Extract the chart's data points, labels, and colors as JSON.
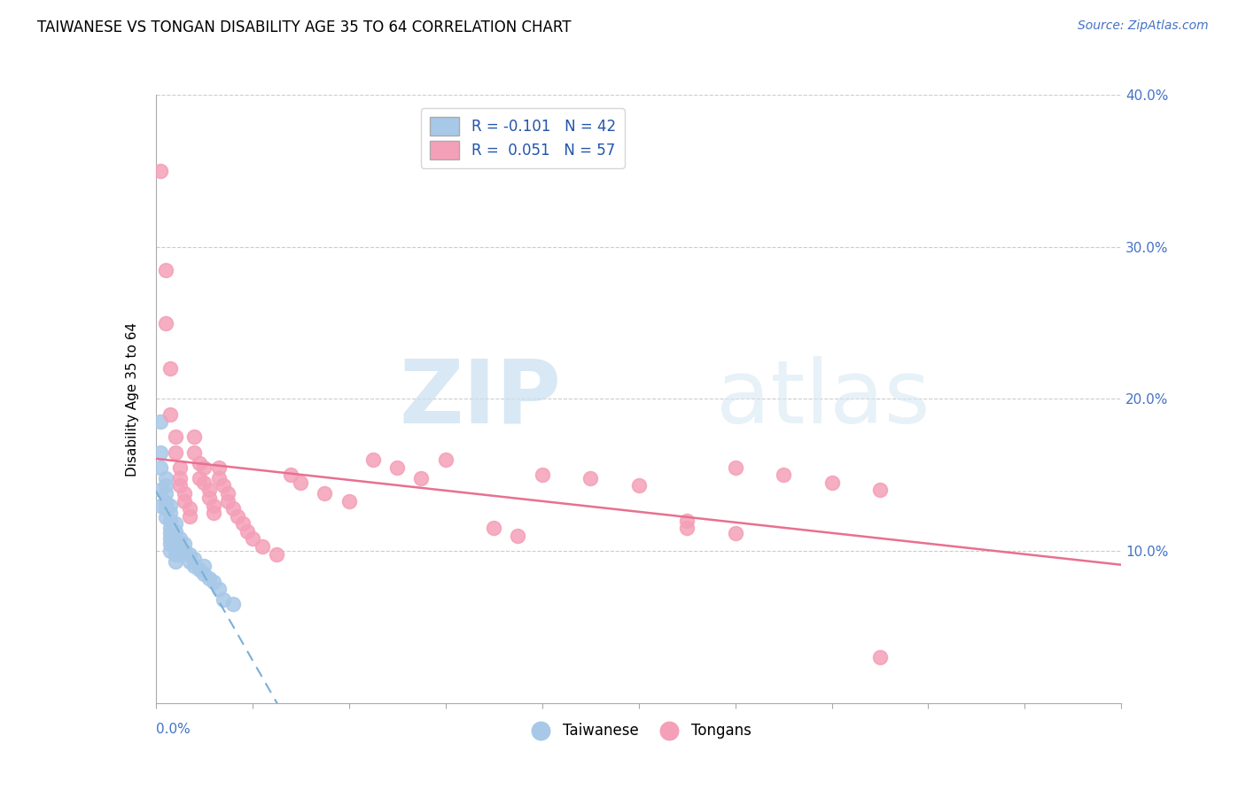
{
  "title": "TAIWANESE VS TONGAN DISABILITY AGE 35 TO 64 CORRELATION CHART",
  "source": "Source: ZipAtlas.com",
  "ylabel": "Disability Age 35 to 64",
  "xlim": [
    0.0,
    0.2
  ],
  "ylim": [
    0.0,
    0.4
  ],
  "yticks": [
    0.0,
    0.1,
    0.2,
    0.3,
    0.4
  ],
  "xticks": [
    0.0,
    0.02,
    0.04,
    0.06,
    0.08,
    0.1,
    0.12,
    0.14,
    0.16,
    0.18,
    0.2
  ],
  "taiwanese_color": "#a8c8e8",
  "tongan_color": "#f4a0b8",
  "taiwanese_line_color": "#7ab0d8",
  "tongan_line_color": "#e87090",
  "legend_label_1": "R = -0.101   N = 42",
  "legend_label_2": "R =  0.051   N = 57",
  "watermark_zip": "ZIP",
  "watermark_atlas": "atlas",
  "taiwanese_x": [
    0.001,
    0.001,
    0.001,
    0.001,
    0.001,
    0.002,
    0.002,
    0.002,
    0.002,
    0.002,
    0.002,
    0.003,
    0.003,
    0.003,
    0.003,
    0.003,
    0.003,
    0.003,
    0.003,
    0.004,
    0.004,
    0.004,
    0.004,
    0.004,
    0.004,
    0.005,
    0.005,
    0.005,
    0.006,
    0.006,
    0.007,
    0.007,
    0.008,
    0.008,
    0.009,
    0.01,
    0.01,
    0.011,
    0.012,
    0.013,
    0.014,
    0.016
  ],
  "taiwanese_y": [
    0.185,
    0.165,
    0.155,
    0.14,
    0.13,
    0.148,
    0.143,
    0.138,
    0.132,
    0.128,
    0.122,
    0.13,
    0.125,
    0.12,
    0.115,
    0.112,
    0.108,
    0.105,
    0.1,
    0.118,
    0.113,
    0.108,
    0.103,
    0.098,
    0.093,
    0.108,
    0.103,
    0.098,
    0.105,
    0.1,
    0.098,
    0.093,
    0.095,
    0.09,
    0.088,
    0.09,
    0.085,
    0.082,
    0.08,
    0.075,
    0.068,
    0.065
  ],
  "tongan_x": [
    0.001,
    0.002,
    0.002,
    0.003,
    0.003,
    0.004,
    0.004,
    0.005,
    0.005,
    0.005,
    0.006,
    0.006,
    0.007,
    0.007,
    0.008,
    0.008,
    0.009,
    0.009,
    0.01,
    0.01,
    0.011,
    0.011,
    0.012,
    0.012,
    0.013,
    0.013,
    0.014,
    0.015,
    0.015,
    0.016,
    0.017,
    0.018,
    0.019,
    0.02,
    0.022,
    0.025,
    0.028,
    0.03,
    0.035,
    0.04,
    0.045,
    0.05,
    0.055,
    0.06,
    0.07,
    0.075,
    0.08,
    0.09,
    0.1,
    0.11,
    0.12,
    0.13,
    0.14,
    0.15,
    0.11,
    0.12,
    0.15
  ],
  "tongan_y": [
    0.35,
    0.285,
    0.25,
    0.22,
    0.19,
    0.175,
    0.165,
    0.155,
    0.148,
    0.143,
    0.138,
    0.133,
    0.128,
    0.123,
    0.175,
    0.165,
    0.158,
    0.148,
    0.155,
    0.145,
    0.14,
    0.135,
    0.13,
    0.125,
    0.155,
    0.148,
    0.143,
    0.138,
    0.133,
    0.128,
    0.123,
    0.118,
    0.113,
    0.108,
    0.103,
    0.098,
    0.15,
    0.145,
    0.138,
    0.133,
    0.16,
    0.155,
    0.148,
    0.16,
    0.115,
    0.11,
    0.15,
    0.148,
    0.143,
    0.12,
    0.155,
    0.15,
    0.145,
    0.14,
    0.115,
    0.112,
    0.03
  ]
}
